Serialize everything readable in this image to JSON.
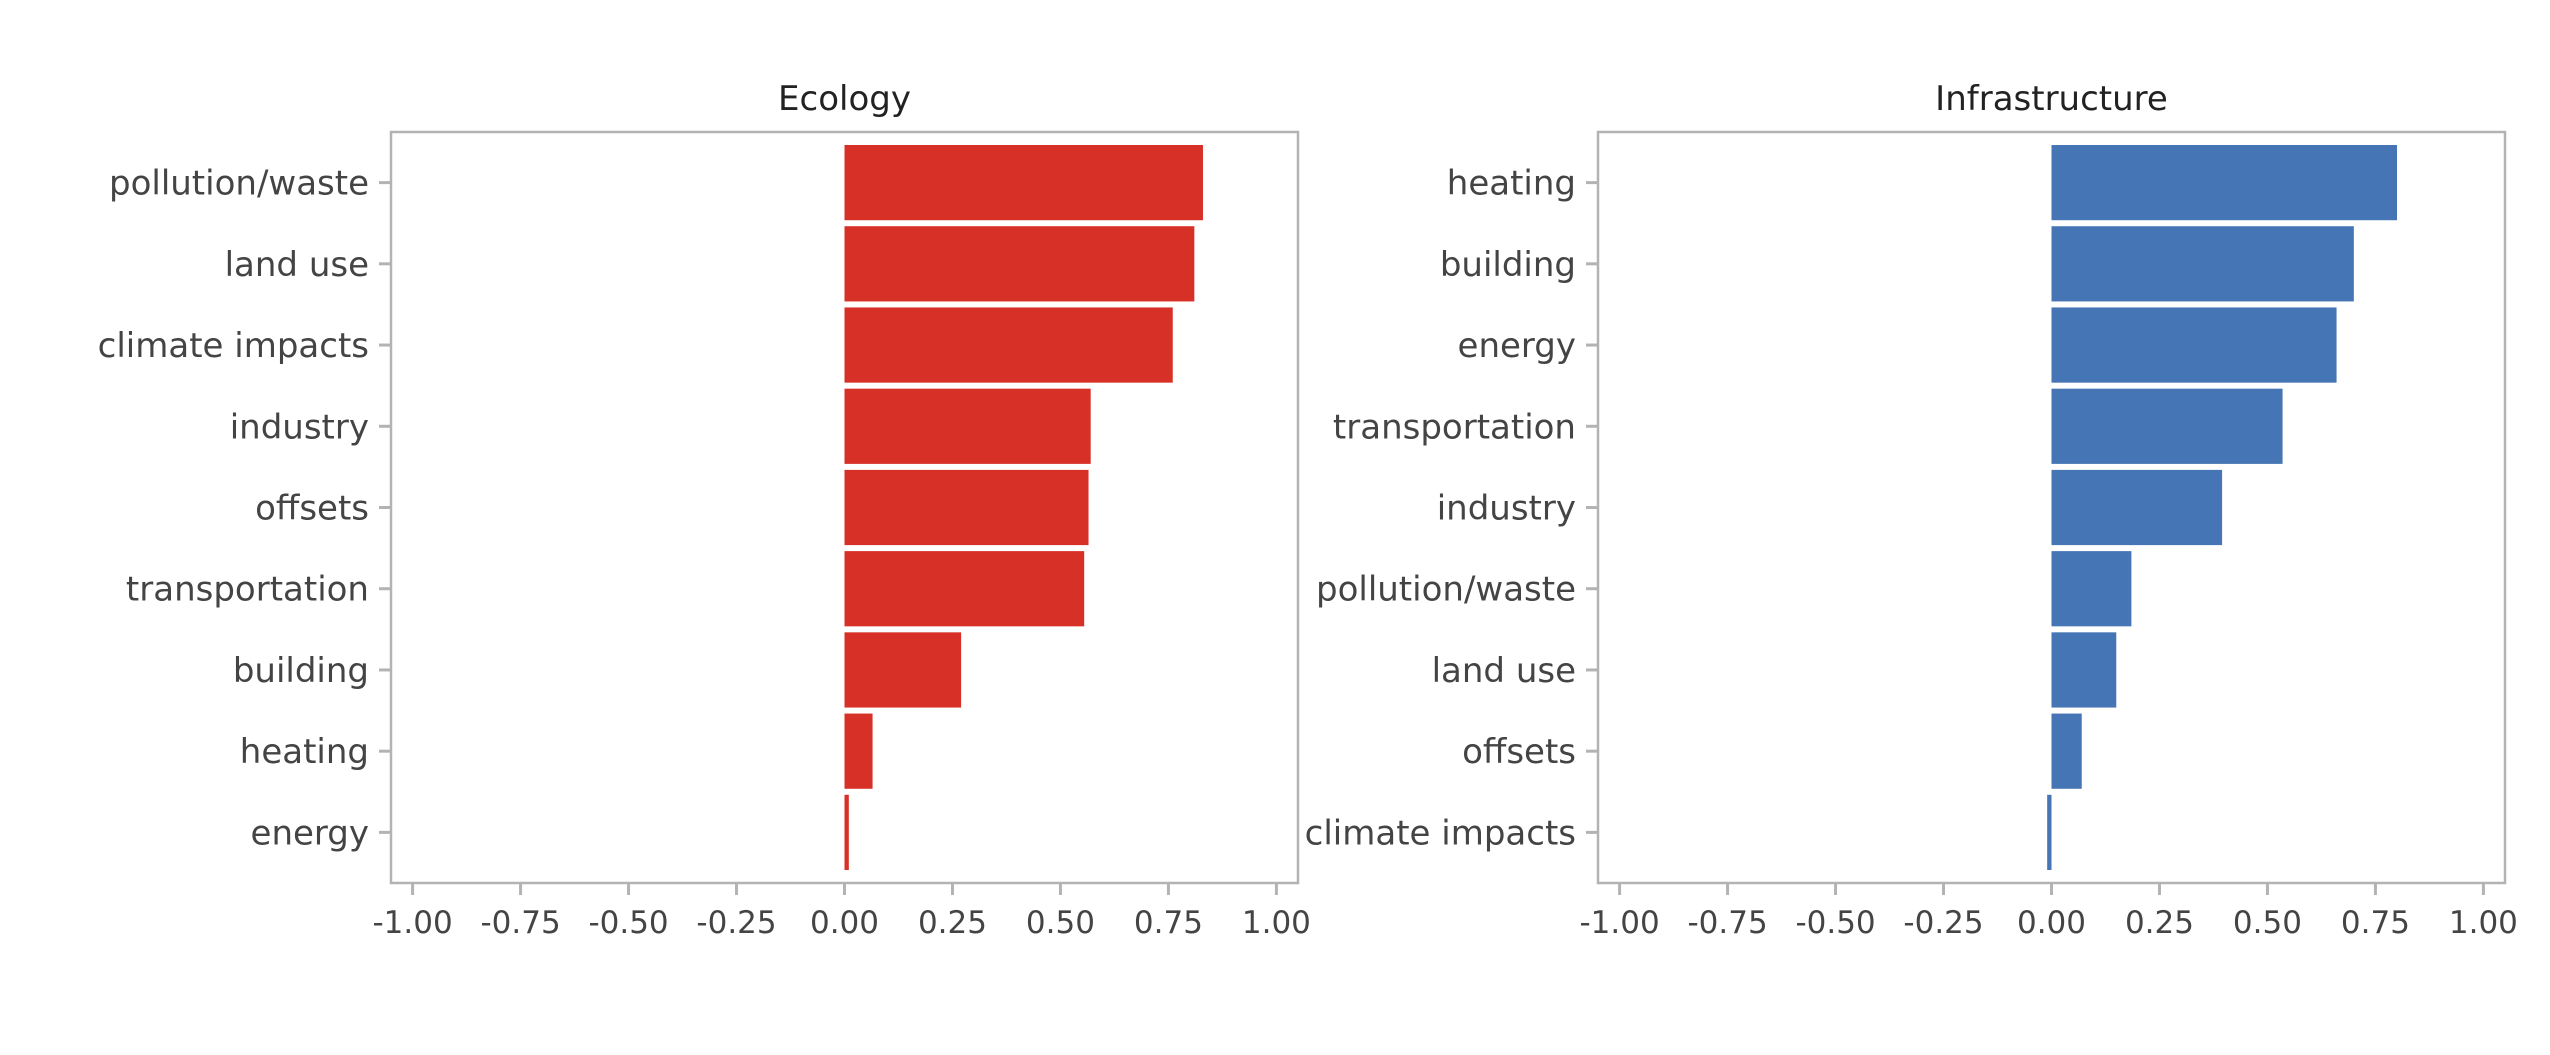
{
  "chart_data": [
    {
      "type": "bar",
      "orientation": "horizontal",
      "title": "Ecology",
      "color": "#d73027",
      "categories": [
        "pollution/waste",
        "land use",
        "climate impacts",
        "industry",
        "offsets",
        "transportation",
        "building",
        "heating",
        "energy"
      ],
      "values": [
        0.83,
        0.81,
        0.76,
        0.57,
        0.565,
        0.555,
        0.27,
        0.065,
        0.01
      ],
      "xlim": [
        -1.05,
        1.05
      ],
      "xticks": [
        "-1.00",
        "-0.75",
        "-0.50",
        "-0.25",
        "0.00",
        "0.25",
        "0.50",
        "0.75",
        "1.00"
      ],
      "xtick_values": [
        -1.0,
        -0.75,
        -0.5,
        -0.25,
        0.0,
        0.25,
        0.5,
        0.75,
        1.0
      ],
      "grid": false
    },
    {
      "type": "bar",
      "orientation": "horizontal",
      "title": "Infrastructure",
      "color": "#4575b4",
      "categories": [
        "heating",
        "building",
        "energy",
        "transportation",
        "industry",
        "pollution/waste",
        "land use",
        "offsets",
        "climate impacts"
      ],
      "values": [
        0.8,
        0.7,
        0.66,
        0.535,
        0.395,
        0.185,
        0.15,
        0.07,
        -0.01
      ],
      "xlim": [
        -1.05,
        1.05
      ],
      "xticks": [
        "-1.00",
        "-0.75",
        "-0.50",
        "-0.25",
        "0.00",
        "0.25",
        "0.50",
        "0.75",
        "1.00"
      ],
      "xtick_values": [
        -1.0,
        -0.75,
        -0.5,
        -0.25,
        0.0,
        0.25,
        0.5,
        0.75,
        1.0
      ],
      "grid": false
    }
  ]
}
